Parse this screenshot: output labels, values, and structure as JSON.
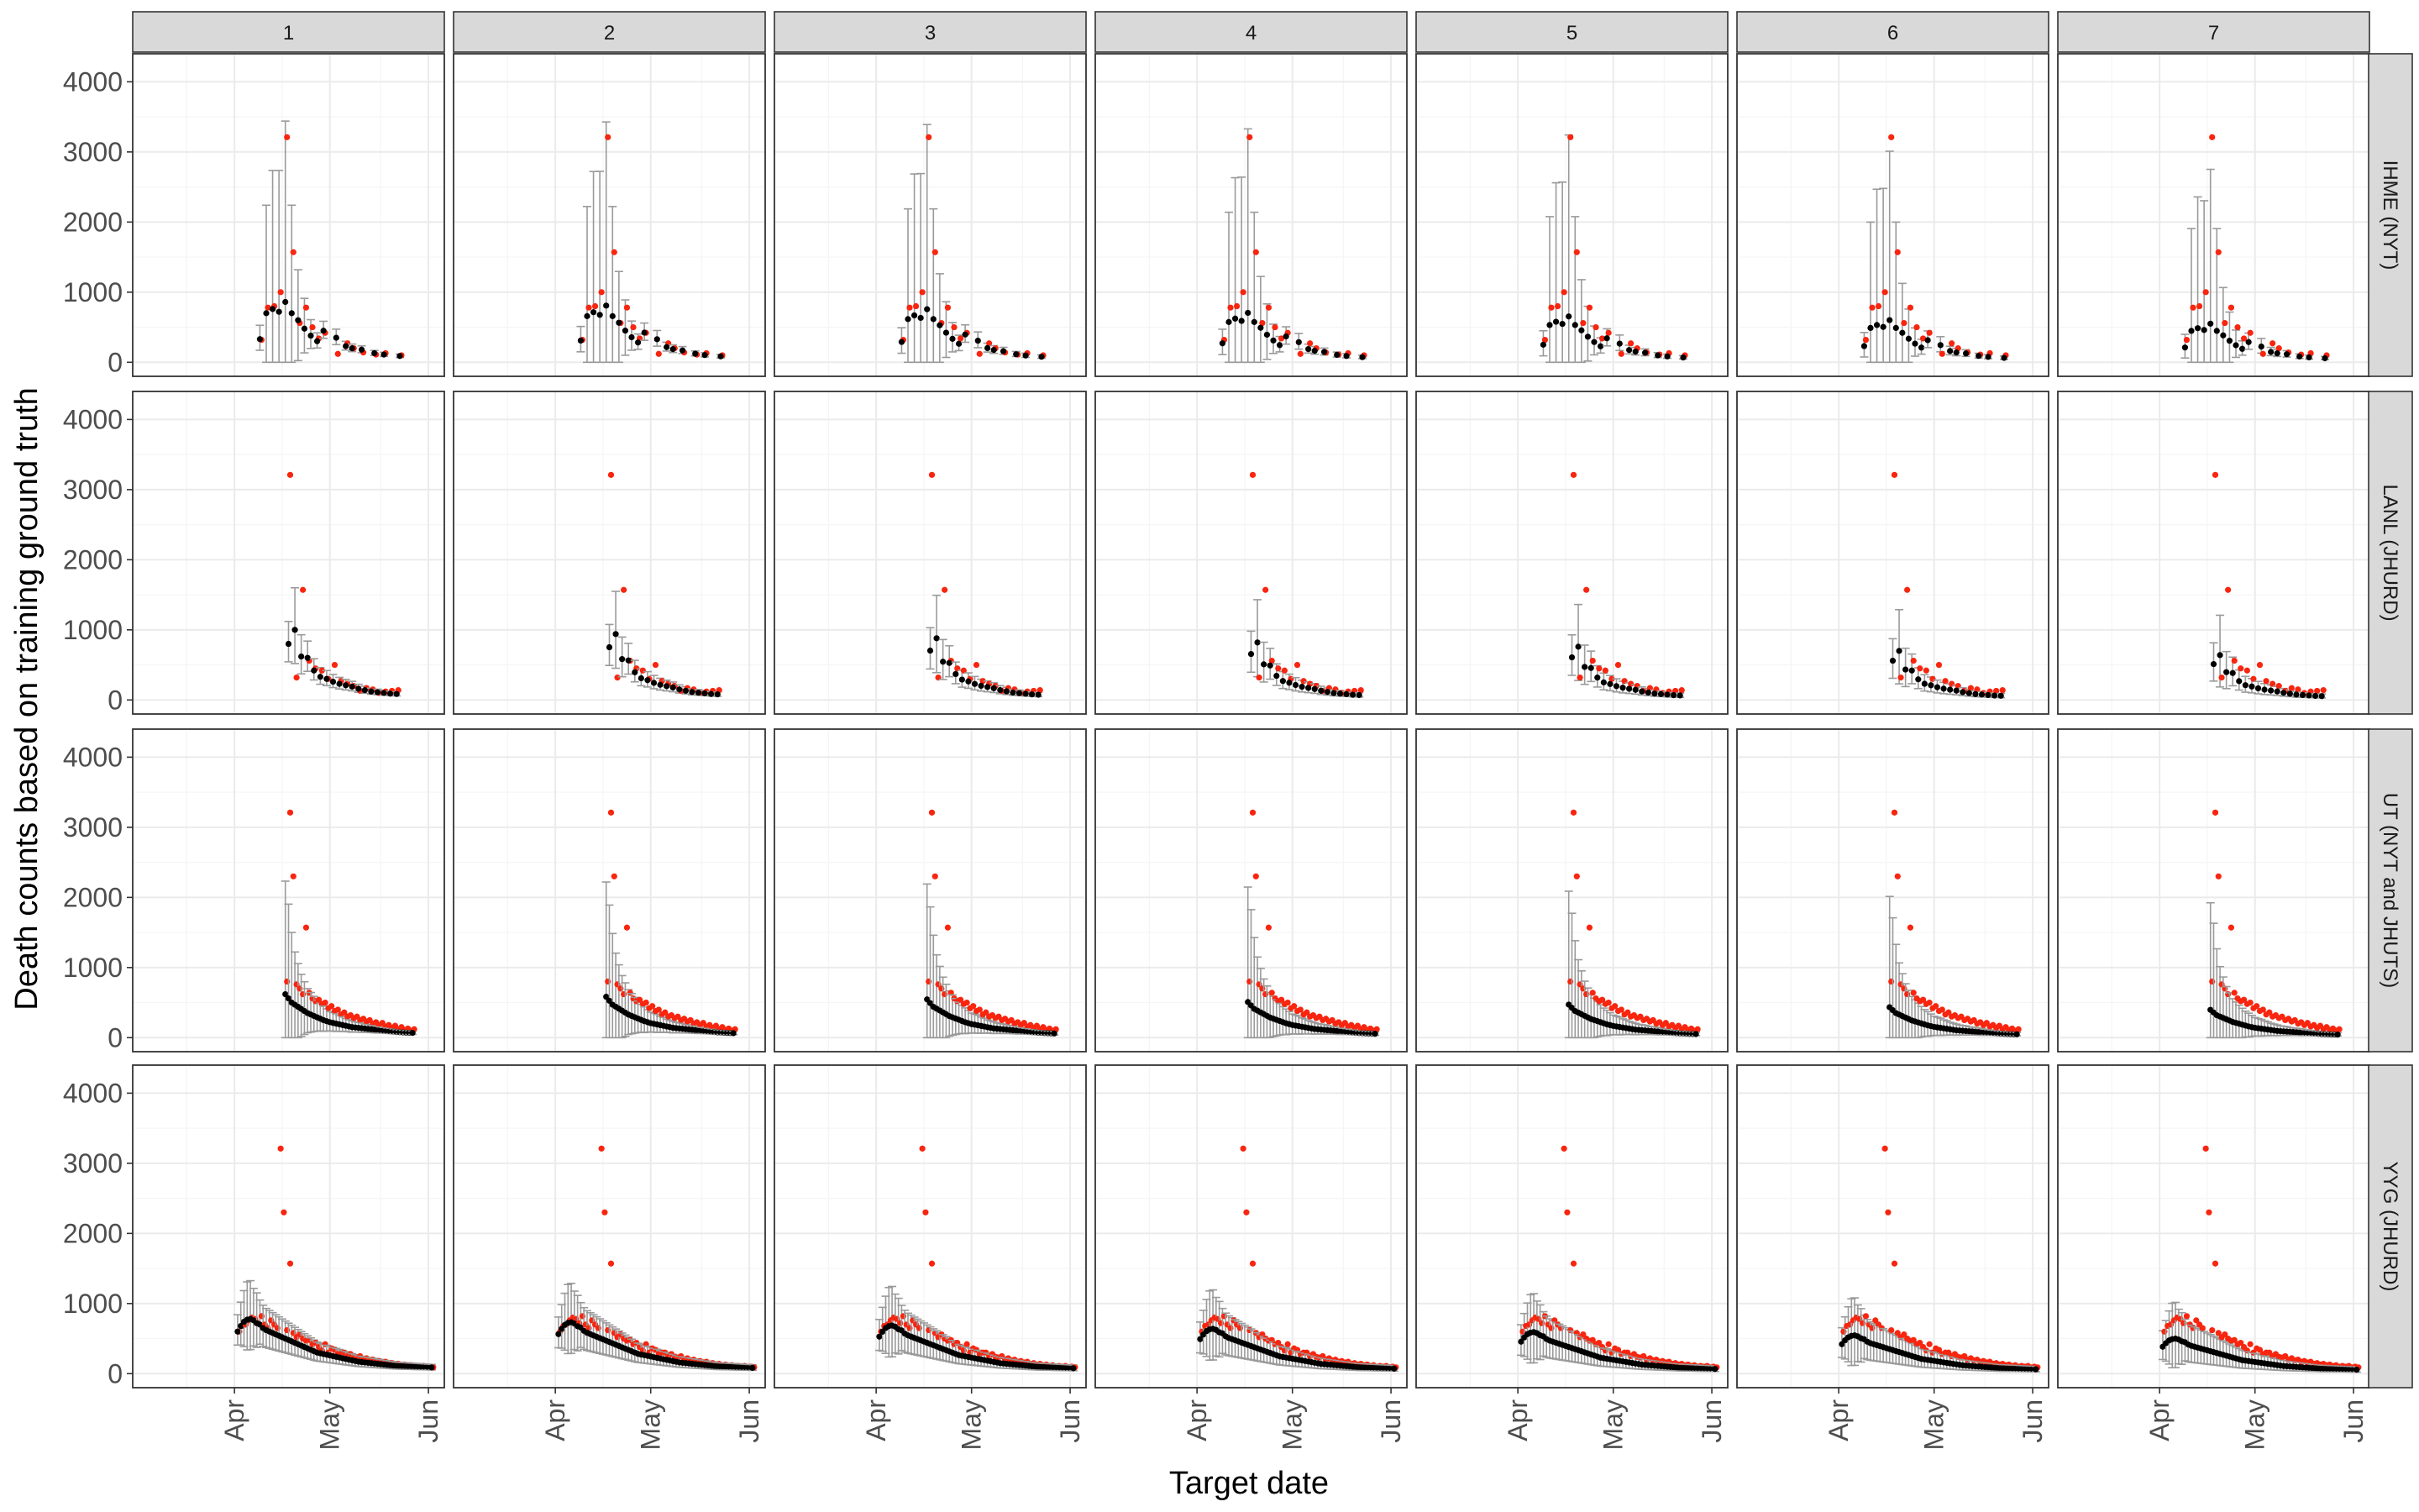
{
  "chart_data": {
    "type": "faceted-scatter-errorbar",
    "title": "",
    "xlabel": "Target date",
    "ylabel": "Death counts based on training ground truth",
    "column_strips": [
      "1",
      "2",
      "3",
      "4",
      "5",
      "6",
      "7"
    ],
    "row_strips": [
      "IHME (NYT)",
      "LANL (JHURD)",
      "UT (NYT and JHUTS)",
      "YYG (JHURD)"
    ],
    "x_axis": {
      "unit": "day of 2020 (Mar 1 = 0)",
      "range": [
        -1,
        97
      ],
      "ticks": [
        31,
        61,
        92
      ],
      "tick_labels": [
        "Apr",
        "May",
        "Jun"
      ]
    },
    "y_axis": {
      "range": [
        -200,
        4400
      ],
      "ticks": [
        0,
        1000,
        2000,
        3000,
        4000
      ],
      "tick_labels": [
        "0",
        "1000",
        "2000",
        "3000",
        "4000"
      ]
    },
    "legend": "none",
    "colors": {
      "prediction": "#000000",
      "ground_truth": "#f8250f",
      "interval": "#9a9a9a",
      "strip_bg": "#d9d9d9",
      "grid_major": "#ebebeb",
      "grid_minor": "#f5f5f5"
    },
    "series": {
      "IHME (NYT)": {
        "dates": [
          39,
          41,
          43,
          45,
          47,
          49,
          51,
          53,
          55,
          57,
          59,
          63,
          66,
          68,
          71,
          75,
          78,
          83
        ],
        "truth": [
          320,
          780,
          800,
          1000,
          3210,
          1570,
          560,
          780,
          500,
          340,
          420,
          120,
          270,
          200,
          140,
          110,
          130,
          100
        ],
        "pred_c1": [
          330,
          700,
          760,
          720,
          860,
          700,
          600,
          480,
          380,
          300,
          450,
          350,
          230,
          200,
          180,
          130,
          110,
          90
        ],
        "pred_w1": [
          0.6,
          2.2,
          2.6,
          2.8,
          3.0,
          2.2,
          1.2,
          0.9,
          0.6,
          0.4,
          0.3,
          0.35,
          0.3,
          0.3,
          0.3,
          0.3,
          0.3,
          0.3
        ]
      },
      "LANL (JHURD)": {
        "dates": [
          48,
          50,
          52,
          54,
          56,
          58,
          60,
          62,
          64,
          66,
          68,
          70,
          72,
          74,
          76,
          78,
          80,
          82
        ],
        "truth": [
          3210,
          320,
          1570,
          560,
          450,
          420,
          300,
          500,
          270,
          230,
          200,
          130,
          170,
          150,
          100,
          120,
          130,
          140
        ],
        "pred_c1": [
          800,
          1000,
          620,
          600,
          420,
          330,
          300,
          260,
          230,
          210,
          190,
          160,
          140,
          120,
          110,
          100,
          90,
          85
        ],
        "pred_w1": [
          0.4,
          0.6,
          0.5,
          0.4,
          0.4,
          0.4,
          0.4,
          0.4,
          0.4,
          0.4,
          0.4,
          0.4,
          0.4,
          0.4,
          0.4,
          0.4,
          0.4,
          0.4
        ]
      },
      "UT (NYT and JHUTS)": {
        "dates": [
          47,
          48,
          49,
          50,
          51,
          52,
          53,
          54,
          55,
          56,
          57,
          58,
          59,
          60,
          61,
          62,
          63,
          64,
          65,
          66,
          67,
          68,
          69,
          70,
          71,
          72,
          73,
          74,
          75,
          76,
          77,
          78,
          79,
          80,
          81,
          82,
          83,
          84,
          85,
          86,
          87
        ],
        "truth": [
          800,
          3210,
          2300,
          760,
          700,
          620,
          1570,
          640,
          560,
          520,
          540,
          480,
          500,
          420,
          450,
          380,
          400,
          330,
          360,
          300,
          320,
          280,
          300,
          250,
          270,
          230,
          250,
          200,
          220,
          180,
          210,
          160,
          180,
          140,
          170,
          120,
          150,
          110,
          130,
          100,
          120
        ],
        "pred_c1": [
          620,
          560,
          500,
          470,
          440,
          410,
          380,
          350,
          330,
          310,
          290,
          270,
          250,
          235,
          220,
          210,
          200,
          190,
          180,
          170,
          160,
          150,
          145,
          140,
          135,
          130,
          125,
          120,
          115,
          110,
          105,
          100,
          95,
          90,
          85,
          80,
          78,
          75,
          72,
          70,
          68
        ],
        "pred_w1": [
          2.6,
          2.4,
          2.0,
          1.6,
          1.4,
          1.2,
          1.1,
          1.0,
          0.95,
          0.9,
          0.85,
          0.8,
          0.8,
          0.75,
          0.7,
          0.7,
          0.7,
          0.65,
          0.65,
          0.6,
          0.6,
          0.6,
          0.55,
          0.55,
          0.55,
          0.5,
          0.5,
          0.5,
          0.5,
          0.5,
          0.45,
          0.45,
          0.45,
          0.45,
          0.45,
          0.4,
          0.4,
          0.4,
          0.4,
          0.4,
          0.4
        ]
      },
      "YYG (JHURD)": {
        "dates": [
          32,
          33,
          34,
          35,
          36,
          37,
          38,
          39,
          40,
          41,
          42,
          43,
          44,
          45,
          46,
          47,
          48,
          49,
          50,
          51,
          52,
          53,
          54,
          55,
          56,
          57,
          58,
          59,
          60,
          61,
          62,
          63,
          64,
          65,
          66,
          67,
          68,
          69,
          70,
          71,
          72,
          73,
          74,
          75,
          76,
          77,
          78,
          79,
          80,
          81,
          82,
          83,
          84,
          85,
          86,
          87,
          88,
          89,
          90,
          91,
          92,
          93
        ],
        "truth": [
          600,
          680,
          700,
          760,
          800,
          780,
          720,
          820,
          700,
          650,
          760,
          700,
          650,
          3210,
          2300,
          620,
          1570,
          580,
          520,
          560,
          500,
          470,
          480,
          420,
          440,
          380,
          330,
          420,
          300,
          360,
          340,
          280,
          300,
          300,
          250,
          280,
          240,
          230,
          250,
          200,
          220,
          190,
          200,
          170,
          180,
          160,
          170,
          140,
          150,
          130,
          140,
          120,
          130,
          110,
          120,
          100,
          110,
          100,
          110,
          90,
          100,
          90
        ],
        "pred_c1": [
          600,
          680,
          740,
          770,
          780,
          760,
          720,
          700,
          650,
          620,
          600,
          580,
          560,
          540,
          520,
          500,
          480,
          460,
          440,
          420,
          400,
          380,
          360,
          340,
          320,
          300,
          290,
          280,
          270,
          260,
          250,
          240,
          230,
          220,
          210,
          200,
          190,
          180,
          170,
          165,
          160,
          155,
          150,
          145,
          140,
          135,
          130,
          125,
          120,
          115,
          110,
          108,
          106,
          104,
          102,
          100,
          98,
          96,
          94,
          92,
          90,
          88
        ],
        "pred_w1": [
          0.4,
          0.5,
          0.6,
          0.7,
          0.7,
          0.6,
          0.6,
          0.5,
          0.5,
          0.5,
          0.5,
          0.5,
          0.5,
          0.5,
          0.5,
          0.5,
          0.5,
          0.5,
          0.5,
          0.5,
          0.5,
          0.5,
          0.5,
          0.5,
          0.5,
          0.5,
          0.5,
          0.5,
          0.5,
          0.5,
          0.5,
          0.5,
          0.5,
          0.5,
          0.5,
          0.5,
          0.5,
          0.5,
          0.5,
          0.5,
          0.5,
          0.5,
          0.5,
          0.5,
          0.5,
          0.5,
          0.5,
          0.5,
          0.5,
          0.5,
          0.5,
          0.5,
          0.5,
          0.5,
          0.5,
          0.5,
          0.5,
          0.5,
          0.5,
          0.5,
          0.5,
          0.5
        ]
      }
    },
    "note": "Ground truth is identical across columns 1-7 within a row; predictions (black) shrink with column 1..7 as pred_c1 * (1 - 0.06 * (col-1)); interval half-width fraction widens similarly."
  }
}
